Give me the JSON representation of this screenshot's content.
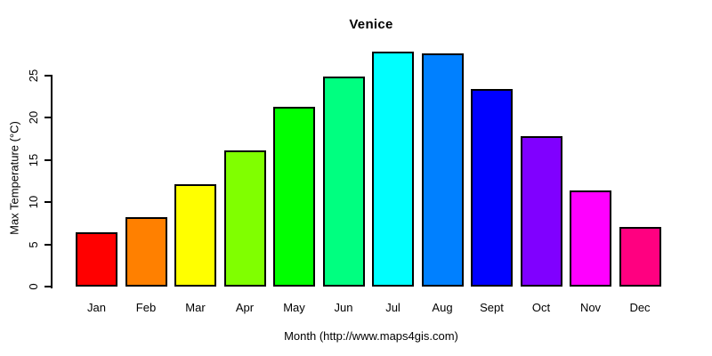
{
  "chart_data": {
    "type": "bar",
    "title": "Venice",
    "xlabel": "Month (http://www.maps4gis.com)",
    "ylabel": "Max Temperature (°C)",
    "categories": [
      "Jan",
      "Feb",
      "Mar",
      "Apr",
      "May",
      "Jun",
      "Jul",
      "Aug",
      "Sept",
      "Oct",
      "Nov",
      "Dec"
    ],
    "values": [
      6.4,
      8.2,
      12.1,
      16.1,
      21.3,
      24.9,
      27.8,
      27.6,
      23.4,
      17.8,
      11.4,
      7.1
    ],
    "bar_colors": [
      "#FF0000",
      "#FF8000",
      "#FFFF00",
      "#80FF00",
      "#00FF00",
      "#00FF80",
      "#00FFFF",
      "#0080FF",
      "#0000FF",
      "#8000FF",
      "#FF00FF",
      "#FF0080"
    ],
    "bar_border_color": "#000000",
    "axis_color": "#000000",
    "y_ticks": [
      0,
      5,
      10,
      15,
      20,
      25
    ],
    "ylim": [
      0,
      28.2
    ],
    "grid": false,
    "legend": false
  }
}
